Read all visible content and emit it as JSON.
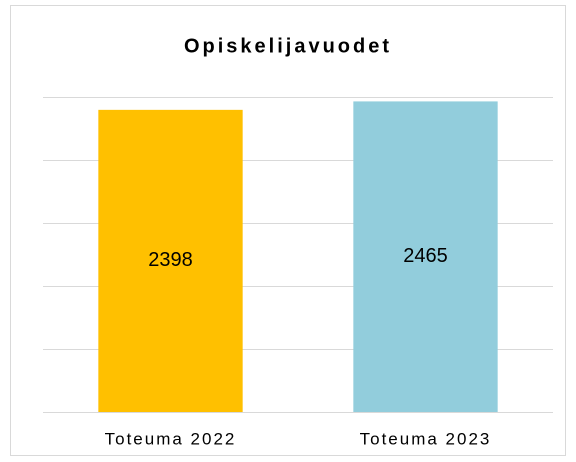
{
  "chart_data": {
    "type": "bar",
    "title": "Opiskelijavuodet",
    "categories": [
      "Toteuma 2022",
      "Toteuma 2023"
    ],
    "values": [
      2398,
      2465
    ],
    "colors": [
      "#ffc000",
      "#92cddc"
    ],
    "ylim": [
      0,
      2500
    ],
    "yticks": [
      0,
      500,
      1000,
      1500,
      2000,
      2500
    ],
    "grid": true
  }
}
